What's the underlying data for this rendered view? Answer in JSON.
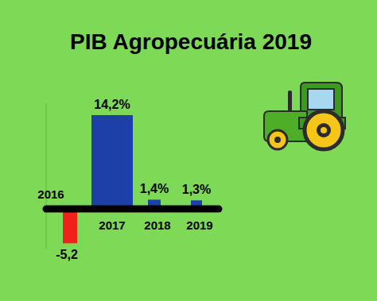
{
  "chart_data": {
    "type": "bar",
    "title": "PIB Agropecuária 2019",
    "categories": [
      "2016",
      "2017",
      "2018",
      "2019"
    ],
    "values": [
      -5.2,
      14.2,
      1.4,
      1.3
    ],
    "value_labels": [
      "-5,2",
      "14,2%",
      "1,4%",
      "1,3%"
    ],
    "colors": [
      "#f0201a",
      "#1c3fa8",
      "#1c3fa8",
      "#1c3fa8"
    ],
    "ylim": [
      -6,
      16
    ],
    "yticks": [
      0
    ],
    "data_labels": true,
    "tick_labels": false,
    "grid": false
  }
}
